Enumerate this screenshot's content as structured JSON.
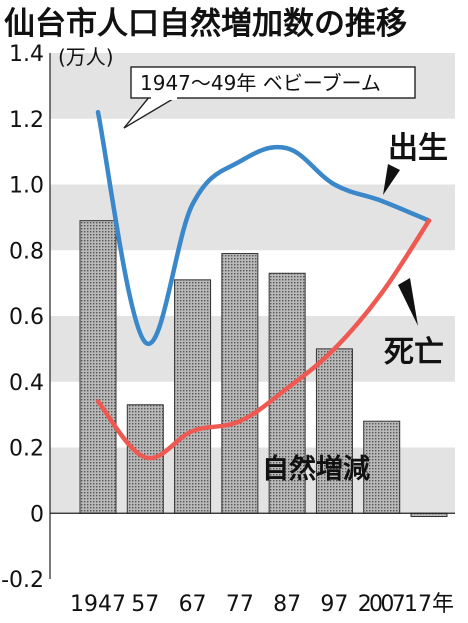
{
  "chart_data": {
    "type": "bar",
    "title": "仙台市人口自然増加数の推移",
    "unit_label": "(万人)",
    "categories": [
      "1947",
      "57",
      "67",
      "77",
      "87",
      "97",
      "2007",
      "17年"
    ],
    "bar_series": {
      "name": "自然増減",
      "values": [
        0.89,
        0.33,
        0.71,
        0.79,
        0.73,
        0.5,
        0.28,
        -0.01
      ]
    },
    "series": [
      {
        "name": "出生",
        "type": "line",
        "values": [
          1.22,
          0.52,
          0.94,
          1.07,
          1.11,
          1.0,
          0.95,
          0.89
        ]
      },
      {
        "name": "死亡",
        "type": "line",
        "values": [
          0.34,
          0.17,
          0.25,
          0.28,
          0.38,
          0.5,
          0.67,
          0.89
        ]
      }
    ],
    "y_ticks": [
      "1.4",
      "1.2",
      "1.0",
      "0.8",
      "0.6",
      "0.4",
      "0.2",
      "0",
      "-0.2"
    ],
    "ylim": [
      -0.2,
      1.4
    ],
    "annotation": "1947〜49年 ベビーブーム",
    "band_fill": "#e3e3e3",
    "bar_fill": "#9a9a9a",
    "birth_color": "#3a87c9",
    "death_color": "#ee5a52"
  }
}
